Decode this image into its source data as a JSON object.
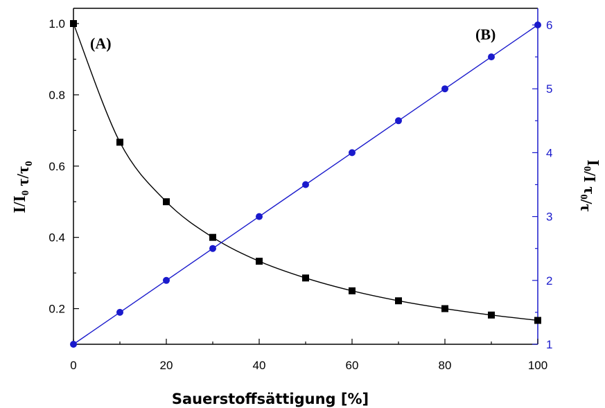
{
  "chart_data": {
    "type": "line",
    "xlabel": "Sauerstoffsättigung [%]",
    "ylabel_left": [
      "I/I",
      "0",
      "τ/τ",
      "0"
    ],
    "ylabel_right": [
      "I",
      "0",
      "/I",
      "τ",
      "0",
      "/τ"
    ],
    "annotations": [
      "(A)",
      "(B)"
    ],
    "x": [
      0,
      10,
      20,
      30,
      40,
      50,
      60,
      70,
      80,
      90,
      100
    ],
    "xlim": [
      0,
      100
    ],
    "xticks": [
      "0",
      "20",
      "40",
      "60",
      "80",
      "100"
    ],
    "ylim_left": [
      0.1,
      1.0
    ],
    "yticks_left": [
      "0.2",
      "0.4",
      "0.6",
      "0.8",
      "1.0"
    ],
    "ylim_right": [
      1,
      6
    ],
    "yticks_right": [
      "1",
      "2",
      "3",
      "4",
      "5",
      "6"
    ],
    "series": [
      {
        "axis": "left",
        "marker": "square",
        "color": "#000000",
        "values": [
          1.0,
          0.667,
          0.5,
          0.4,
          0.333,
          0.286,
          0.25,
          0.222,
          0.2,
          0.182,
          0.167
        ]
      },
      {
        "axis": "right",
        "marker": "circle",
        "color": "#1a1acc",
        "values": [
          1.0,
          1.5,
          2.0,
          2.5,
          3.0,
          3.5,
          4.0,
          4.5,
          5.0,
          5.5,
          6.0
        ]
      }
    ],
    "grid": false
  },
  "colors": {
    "left_axis": "#000000",
    "right_axis": "#1a1acc"
  }
}
